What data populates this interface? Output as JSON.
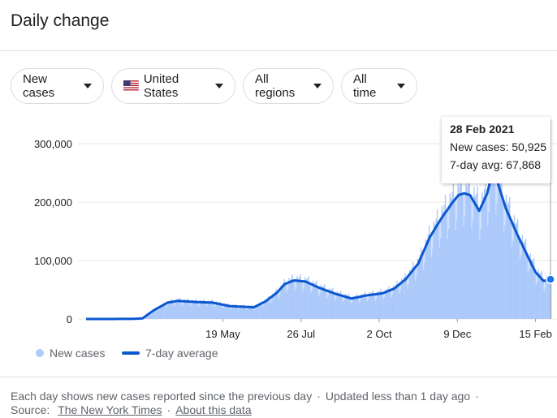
{
  "header": {
    "title": "Daily change"
  },
  "filters": {
    "metric": "New cases",
    "location": "United States",
    "regions": "All regions",
    "period": "All time"
  },
  "colors": {
    "bars": "#aecbfa",
    "area": "#a8c7fa",
    "line": "#0b57d0",
    "grid": "#e8eaed"
  },
  "tooltip": {
    "date": "28 Feb 2021",
    "new_cases": "New cases: 50,925",
    "avg": "7-day avg: 67,868"
  },
  "legend": {
    "bars": "New cases",
    "line": "7-day average"
  },
  "footer": {
    "note": "Each day shows new cases reported since the previous day",
    "updated": "Updated less than 1 day ago",
    "source_label": "Source:",
    "source": "The New York Times",
    "about": "About this data"
  },
  "chart_data": {
    "type": "bar",
    "x_start": "2020-01-21",
    "x_end": "2021-02-28",
    "ylim": [
      0,
      300000
    ],
    "yticks": [
      "0",
      "100,000",
      "200,000",
      "300,000"
    ],
    "xticks": [
      {
        "label": "19 May",
        "date": "2020-05-19"
      },
      {
        "label": "26 Jul",
        "date": "2020-07-26"
      },
      {
        "label": "2 Oct",
        "date": "2020-10-02"
      },
      {
        "label": "9 Dec",
        "date": "2020-12-09"
      },
      {
        "label": "15 Feb",
        "date": "2021-02-15"
      }
    ],
    "series": [
      {
        "name": "7-day average",
        "points": [
          [
            "2020-01-21",
            0
          ],
          [
            "2020-03-01",
            100
          ],
          [
            "2020-03-10",
            1000
          ],
          [
            "2020-03-20",
            15000
          ],
          [
            "2020-04-01",
            28000
          ],
          [
            "2020-04-10",
            31000
          ],
          [
            "2020-04-25",
            29000
          ],
          [
            "2020-05-10",
            28000
          ],
          [
            "2020-05-25",
            22000
          ],
          [
            "2020-06-05",
            21000
          ],
          [
            "2020-06-15",
            20000
          ],
          [
            "2020-06-25",
            30000
          ],
          [
            "2020-07-05",
            45000
          ],
          [
            "2020-07-12",
            60000
          ],
          [
            "2020-07-20",
            66000
          ],
          [
            "2020-07-30",
            64000
          ],
          [
            "2020-08-10",
            54000
          ],
          [
            "2020-08-25",
            43000
          ],
          [
            "2020-09-08",
            35000
          ],
          [
            "2020-09-20",
            40000
          ],
          [
            "2020-10-05",
            44000
          ],
          [
            "2020-10-15",
            52000
          ],
          [
            "2020-10-25",
            68000
          ],
          [
            "2020-11-05",
            95000
          ],
          [
            "2020-11-15",
            140000
          ],
          [
            "2020-11-25",
            172000
          ],
          [
            "2020-12-05",
            200000
          ],
          [
            "2020-12-10",
            212000
          ],
          [
            "2020-12-15",
            215000
          ],
          [
            "2020-12-20",
            212000
          ],
          [
            "2020-12-28",
            185000
          ],
          [
            "2021-01-04",
            215000
          ],
          [
            "2021-01-08",
            248000
          ],
          [
            "2021-01-12",
            240000
          ],
          [
            "2021-01-20",
            190000
          ],
          [
            "2021-01-30",
            145000
          ],
          [
            "2021-02-08",
            108000
          ],
          [
            "2021-02-15",
            80000
          ],
          [
            "2021-02-22",
            65000
          ],
          [
            "2021-02-28",
            67868
          ]
        ]
      }
    ],
    "bar_series_name": "New cases"
  }
}
